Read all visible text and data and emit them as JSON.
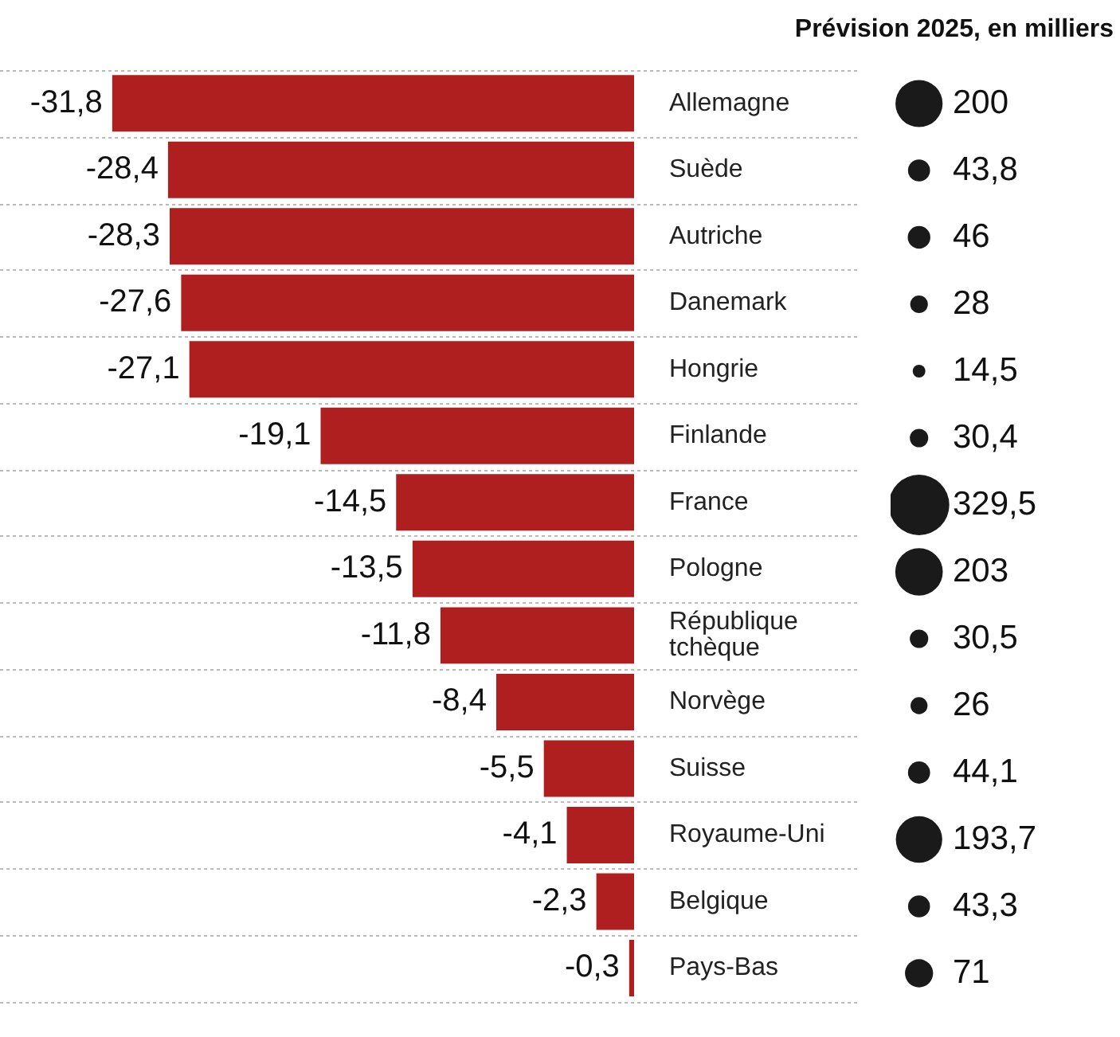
{
  "chart_data": [
    {
      "type": "bar",
      "orientation": "horizontal",
      "categories": [
        "Allemagne",
        "Suède",
        "Autriche",
        "Danemark",
        "Hongrie",
        "Finlande",
        "France",
        "Pologne",
        "République tchèque",
        "Norvège",
        "Suisse",
        "Royaume-Uni",
        "Belgique",
        "Pays-Bas"
      ],
      "values": [
        -31.8,
        -28.4,
        -28.3,
        -27.6,
        -27.1,
        -19.1,
        -14.5,
        -13.5,
        -11.8,
        -8.4,
        -5.5,
        -4.1,
        -2.3,
        -0.3
      ],
      "value_labels": [
        "-31,8",
        "-28,4",
        "-28,3",
        "-27,6",
        "-27,1",
        "-19,1",
        "-14,5",
        "-13,5",
        "-11,8",
        "-8,4",
        "-5,5",
        "-4,1",
        "-2,3",
        "-0,3"
      ],
      "color": "#b01f1f",
      "grid": "y",
      "tick_labels": "y",
      "legend": false
    },
    {
      "type": "other",
      "title": "Prévision 2025, en milliers",
      "categories": [
        null,
        null,
        null,
        null,
        null,
        null,
        null,
        null,
        null,
        null,
        null,
        null,
        null,
        null
      ],
      "values": [
        200,
        43.8,
        46,
        28,
        14.5,
        30.4,
        329.5,
        203,
        30.5,
        26,
        44.1,
        193.7,
        43.3,
        71
      ],
      "value_labels": [
        "200",
        "43,8",
        "46",
        "28",
        "14,5",
        "30,4",
        "329,5",
        "203",
        "30,5",
        "26",
        "44,1",
        "193,7",
        "43,3",
        "71"
      ],
      "color": "#1a1a1a",
      "legend": false
    }
  ]
}
